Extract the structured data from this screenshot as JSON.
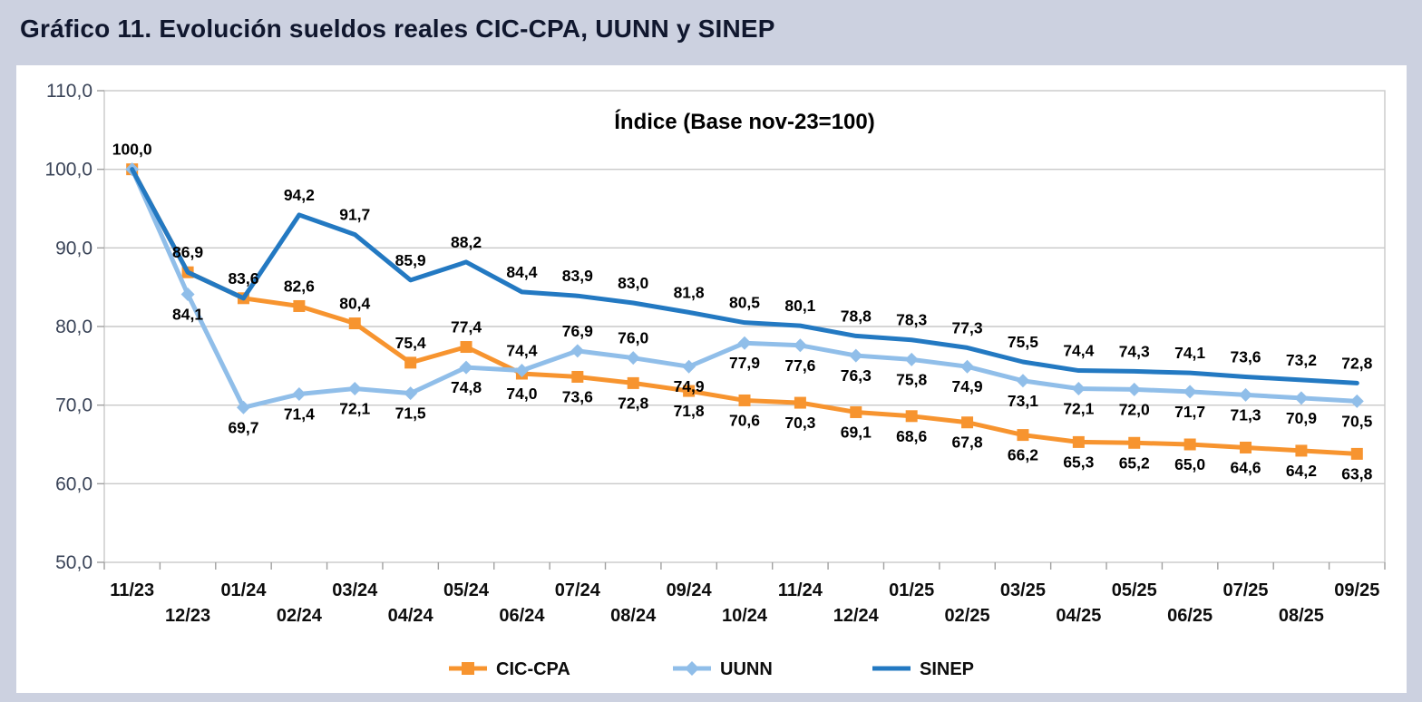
{
  "page": {
    "title": "Gráfico 11. Evolución sueldos reales CIC-CPA, UUNN y SINEP"
  },
  "chart_data": {
    "type": "line",
    "title": "Índice (Base nov-23=100)",
    "categories": [
      "11/23",
      "12/23",
      "01/24",
      "02/24",
      "03/24",
      "04/24",
      "05/24",
      "06/24",
      "07/24",
      "08/24",
      "09/24",
      "10/24",
      "11/24",
      "12/24",
      "01/25",
      "02/25",
      "03/25",
      "04/25",
      "05/25",
      "06/25",
      "07/25",
      "08/25",
      "09/25"
    ],
    "series": [
      {
        "name": "CIC-CPA",
        "color": "#F7942F",
        "marker": "square",
        "values": [
          100.0,
          86.9,
          83.6,
          82.6,
          80.4,
          75.4,
          77.4,
          74.0,
          73.6,
          72.8,
          71.8,
          70.6,
          70.3,
          69.1,
          68.6,
          67.8,
          66.2,
          65.3,
          65.2,
          65.0,
          64.6,
          64.2,
          63.8
        ],
        "label_pos": [
          "above",
          "above",
          "above",
          "above",
          "above",
          "above",
          "above",
          "below",
          "below",
          "below",
          "below",
          "below",
          "below",
          "below",
          "below",
          "below",
          "below",
          "below",
          "below",
          "below",
          "below",
          "below",
          "below"
        ]
      },
      {
        "name": "UUNN",
        "color": "#90BEE9",
        "marker": "diamond",
        "values": [
          100.0,
          84.1,
          69.7,
          71.4,
          72.1,
          71.5,
          74.8,
          74.4,
          76.9,
          76.0,
          74.9,
          77.9,
          77.6,
          76.3,
          75.8,
          74.9,
          73.1,
          72.1,
          72.0,
          71.7,
          71.3,
          70.9,
          70.5
        ],
        "label_pos": [
          "none",
          "below",
          "below",
          "below",
          "below",
          "below",
          "below",
          "above",
          "above",
          "above",
          "below",
          "below",
          "below",
          "below",
          "below",
          "below",
          "below",
          "below",
          "below",
          "below",
          "below",
          "below",
          "below"
        ]
      },
      {
        "name": "SINEP",
        "color": "#2379C2",
        "marker": "none",
        "values": [
          100.0,
          86.9,
          83.6,
          94.2,
          91.7,
          85.9,
          88.2,
          84.4,
          83.9,
          83.0,
          81.8,
          80.5,
          80.1,
          78.8,
          78.3,
          77.3,
          75.5,
          74.4,
          74.3,
          74.1,
          73.6,
          73.2,
          72.8
        ],
        "label_pos": [
          "none",
          "none",
          "none",
          "above",
          "above",
          "above",
          "above",
          "above",
          "above",
          "above",
          "above",
          "above",
          "above",
          "above",
          "above",
          "above",
          "above",
          "above",
          "above",
          "above",
          "above",
          "above",
          "above"
        ]
      }
    ],
    "ylim": [
      50,
      110
    ],
    "ytick_step": 10,
    "grid": true,
    "legend_position": "bottom",
    "decimal_separator": ",",
    "colors": {
      "data_label": "#000000",
      "y_axis_label": "#3A4458",
      "x_axis_label": "#0D0D0D",
      "gridline": "#C9C9C9",
      "axis": "#A0A0A0",
      "panel_background": "#FFFFFF",
      "page_background": "#CCD1E0"
    }
  }
}
